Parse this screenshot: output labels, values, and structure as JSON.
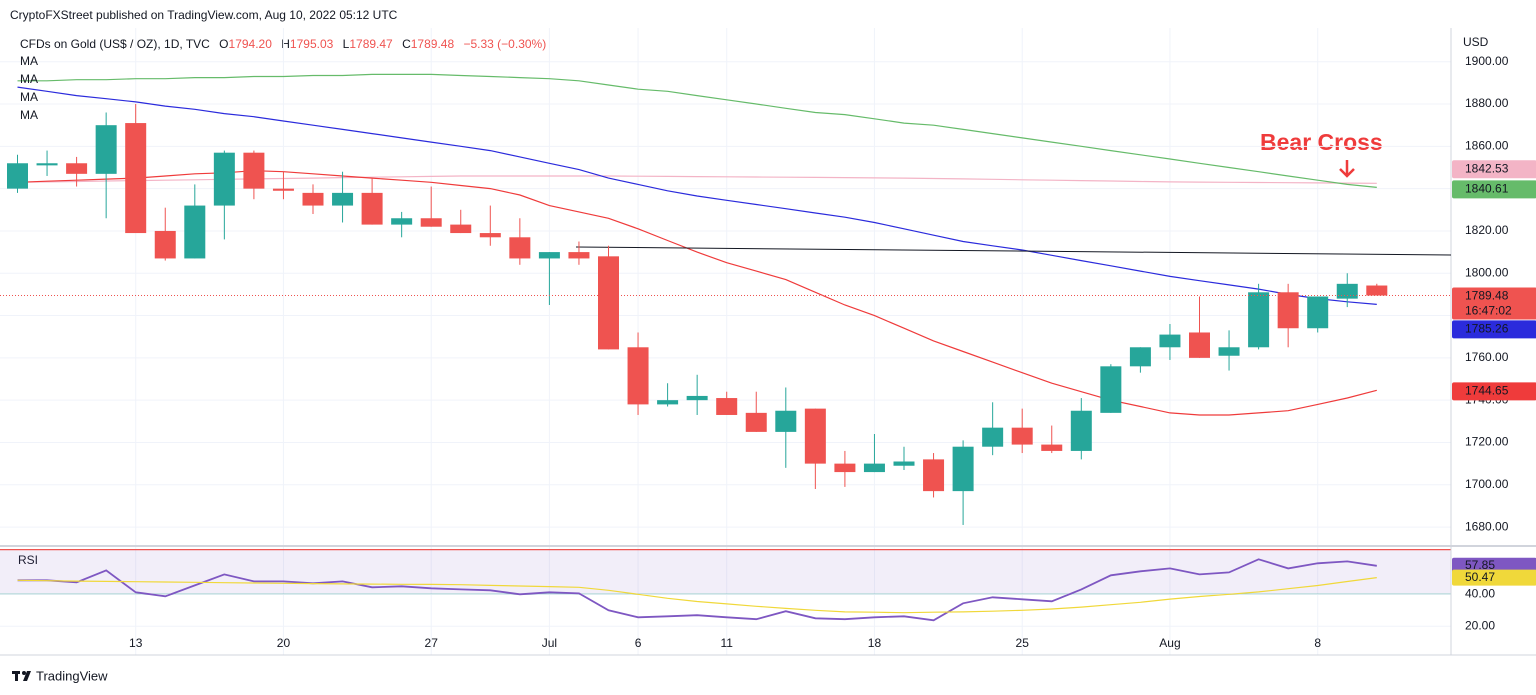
{
  "header": {
    "published": "CryptoFXStreet published on TradingView.com, Aug 10, 2022 05:12 UTC"
  },
  "footer": {
    "brand": "TradingView"
  },
  "chart_data": [
    {
      "type": "candlestick",
      "title": "CFDs on Gold (US$ / OZ), 1D, TVC",
      "ohlc_legend": [
        {
          "key": "O",
          "value": "1794.20"
        },
        {
          "key": "H",
          "value": "1795.03"
        },
        {
          "key": "L",
          "value": "1789.47"
        },
        {
          "key": "C",
          "value": "1789.48"
        }
      ],
      "change": "−5.33 (−0.30%)",
      "y_label": "USD",
      "annotation": "Bear Cross",
      "countdown": "16:47:02",
      "categories": [
        null,
        null,
        null,
        null,
        "13",
        null,
        null,
        null,
        null,
        "20",
        null,
        null,
        null,
        null,
        "27",
        null,
        null,
        null,
        "Jul",
        null,
        null,
        "6",
        null,
        null,
        "11",
        null,
        null,
        null,
        null,
        "18",
        null,
        null,
        null,
        null,
        "25",
        null,
        null,
        null,
        null,
        "Aug",
        null,
        null,
        null,
        null,
        "8",
        null,
        null
      ],
      "open": [
        1840,
        1851,
        1852,
        1847,
        1871,
        1820,
        1807,
        1832,
        1857,
        1840,
        1838,
        1832,
        1838,
        1823,
        1826,
        1823,
        1819,
        1817,
        1807,
        1810,
        1808,
        1765,
        1738,
        1740,
        1741,
        1734,
        1725,
        1736,
        1710,
        1706,
        1709,
        1712,
        1697,
        1718,
        1727,
        1719,
        1716,
        1734,
        1756,
        1765,
        1772,
        1761,
        1765,
        1791,
        1774,
        1788,
        1794.2
      ],
      "high": [
        1856,
        1858,
        1855,
        1876,
        1880,
        1831,
        1842,
        1858,
        1858,
        1848,
        1842,
        1848,
        1845,
        1829,
        1841,
        1830,
        1832,
        1826,
        1810,
        1815,
        1813,
        1772,
        1748,
        1752,
        1744,
        1744,
        1746,
        1736,
        1716,
        1724,
        1718,
        1715,
        1721,
        1739,
        1736,
        1728,
        1741,
        1757,
        1765,
        1776,
        1789,
        1773,
        1795,
        1795,
        1789,
        1800,
        1795.03
      ],
      "low": [
        1838,
        1846,
        1841,
        1826,
        1819,
        1806,
        1807,
        1816,
        1835,
        1835,
        1828,
        1824,
        1823,
        1817,
        1822,
        1819,
        1813,
        1804,
        1785,
        1804,
        1764,
        1733,
        1737,
        1733,
        1733,
        1725,
        1708,
        1698,
        1699,
        1706,
        1707,
        1694,
        1681,
        1714,
        1715,
        1715,
        1712,
        1734,
        1753,
        1759,
        1760,
        1754,
        1764,
        1765,
        1772,
        1784,
        1789.47
      ],
      "close": [
        1852,
        1852,
        1847,
        1870,
        1819,
        1807,
        1832,
        1857,
        1840,
        1839,
        1832,
        1838,
        1823,
        1826,
        1822,
        1819,
        1817,
        1807,
        1810,
        1807,
        1764,
        1738,
        1740,
        1742,
        1733,
        1725,
        1735,
        1710,
        1706,
        1710,
        1711,
        1697,
        1718,
        1727,
        1719,
        1716,
        1735,
        1756,
        1765,
        1771,
        1760,
        1765,
        1791,
        1774,
        1789,
        1795,
        1789.48
      ],
      "up_color": "#26a69a",
      "down_color": "#ef5350",
      "series": [
        {
          "name": "MA",
          "color": "#f3b4c6",
          "label_color": "#131722",
          "values": [
            1843,
            1843.2,
            1843.4,
            1843.6,
            1843.8,
            1844,
            1844.2,
            1844.4,
            1844.6,
            1844.8,
            1845,
            1845.2,
            1845.4,
            1845.6,
            1845.8,
            1846,
            1846,
            1846,
            1846,
            1846,
            1846,
            1845.9,
            1845.8,
            1845.7,
            1845.6,
            1845.5,
            1845.4,
            1845.3,
            1845.2,
            1845.1,
            1845,
            1844.8,
            1844.6,
            1844.4,
            1844.2,
            1844,
            1843.8,
            1843.6,
            1843.4,
            1843.2,
            1843.1,
            1843,
            1842.9,
            1842.8,
            1842.7,
            1842.6,
            1842.53
          ]
        },
        {
          "name": "MA",
          "color": "#66bb6a",
          "label_color": "#ffffff",
          "values": [
            1891,
            1891,
            1891.5,
            1891.5,
            1892,
            1892,
            1892.5,
            1892.5,
            1893,
            1893,
            1893.5,
            1893.5,
            1894,
            1894,
            1894,
            1893.5,
            1893,
            1892.5,
            1892,
            1891,
            1889,
            1887,
            1886,
            1884,
            1882,
            1880,
            1878,
            1876,
            1875,
            1873,
            1871,
            1870,
            1868,
            1866,
            1864,
            1862,
            1860,
            1858,
            1856,
            1854,
            1852,
            1850,
            1848,
            1846,
            1844,
            1842,
            1840.61
          ]
        },
        {
          "name": "MA",
          "color": "#2b2bdc",
          "label_color": "#ffffff",
          "values": [
            1888,
            1886,
            1884,
            1882.5,
            1881,
            1879,
            1877.5,
            1875.5,
            1874,
            1872,
            1870,
            1868,
            1866,
            1864,
            1862,
            1860,
            1858,
            1855,
            1852,
            1849,
            1845,
            1842,
            1839,
            1836.5,
            1834.5,
            1832.5,
            1830.5,
            1828.5,
            1826.5,
            1824,
            1821,
            1818,
            1815,
            1813,
            1811,
            1808.5,
            1806,
            1803.5,
            1801,
            1798.5,
            1796.5,
            1794.5,
            1792.5,
            1790,
            1788,
            1786.5,
            1785.26
          ]
        },
        {
          "name": "MA",
          "color": "#ef3b3b",
          "label_color": "#ffffff",
          "values": [
            1843,
            1843.5,
            1844,
            1844.5,
            1845,
            1846,
            1847,
            1847.5,
            1848.5,
            1848,
            1847,
            1846,
            1845,
            1844,
            1843,
            1841.5,
            1840,
            1837,
            1832,
            1829,
            1826,
            1821,
            1815.5,
            1810,
            1805,
            1801,
            1797,
            1791,
            1785,
            1780,
            1774,
            1768,
            1763,
            1758,
            1753,
            1748,
            1744,
            1740,
            1737,
            1734,
            1733,
            1733,
            1734,
            1735,
            1738,
            1741,
            1744.65
          ]
        }
      ],
      "ylim": [
        1672,
        1915
      ],
      "yticks": [
        {
          "value": 1680,
          "label": "1680.00"
        },
        {
          "value": 1700,
          "label": "1700.00"
        },
        {
          "value": 1720,
          "label": "1720.00"
        },
        {
          "value": 1740,
          "label": "1740.00"
        },
        {
          "value": 1760,
          "label": "1760.00"
        },
        {
          "value": 1780,
          "label": "1780.00"
        },
        {
          "value": 1800,
          "label": "1800.00"
        },
        {
          "value": 1820,
          "label": "1820.00"
        },
        {
          "value": 1840,
          "label": "1840.00"
        },
        {
          "value": 1860,
          "label": "1860.00"
        },
        {
          "value": 1880,
          "label": "1880.00"
        },
        {
          "value": 1900,
          "label": "1900.00"
        }
      ],
      "grid": true
    },
    {
      "type": "line",
      "title": "RSI",
      "series": [
        {
          "name": "RSI",
          "color": "#7e57c2",
          "values": [
            48.75,
            48.75,
            47.5,
            55,
            41.25,
            38.75,
            45.6,
            52.5,
            48.1,
            48.1,
            46.9,
            48.1,
            44.4,
            45,
            43.75,
            43.1,
            42.5,
            40,
            41.25,
            40.6,
            30,
            25.6,
            26.25,
            26.9,
            25.6,
            24.4,
            29.4,
            25,
            24.4,
            25.6,
            26.25,
            23.75,
            34.4,
            38.1,
            36.9,
            35.6,
            43.1,
            51.9,
            54.4,
            56.25,
            52.5,
            53.75,
            61.9,
            56.25,
            59.4,
            60.6,
            57.85
          ]
        },
        {
          "name": "RSI-based MA",
          "color": "#f0d83a",
          "values": [
            48.75,
            48.5,
            48.3,
            48.1,
            47.9,
            47.7,
            47.5,
            47.3,
            47.1,
            46.9,
            46.7,
            46.5,
            46.4,
            46.3,
            46.2,
            46,
            45.6,
            45.2,
            44.8,
            44.4,
            42.5,
            40,
            37.5,
            35.5,
            34,
            32.5,
            31.2,
            30,
            29,
            28.8,
            28.5,
            28.8,
            29,
            29.4,
            30,
            30.8,
            32,
            33.5,
            35,
            37,
            38.6,
            40,
            41.5,
            43.5,
            45.5,
            48,
            50.47
          ]
        }
      ],
      "levels": [
        {
          "value": 68,
          "color": "#ef5350"
        },
        {
          "value": 40,
          "color": "#089981"
        }
      ],
      "ylim": [
        2,
        69
      ],
      "yticks": [
        {
          "value": 20,
          "label": "20.00"
        },
        {
          "value": 40,
          "label": "40.00"
        }
      ],
      "grid": true
    }
  ]
}
